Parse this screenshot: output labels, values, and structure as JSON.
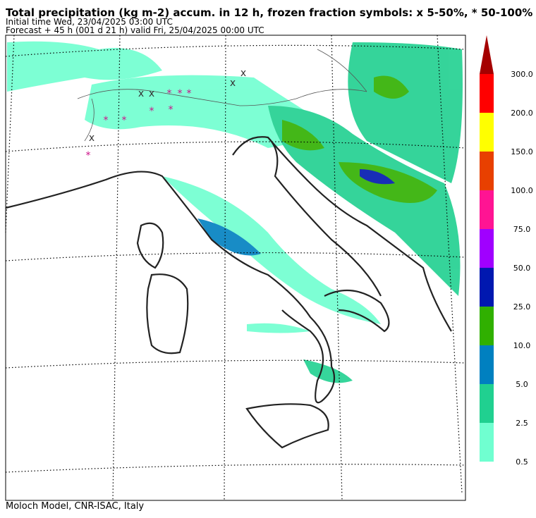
{
  "header": {
    "title": "Total precipitation (kg m-2) accum. in 12 h, frozen fraction symbols: x 5-50%, * 50-100%",
    "initial_time": "Initial time  Wed, 23/04/2025  03:00 UTC",
    "forecast": "Forecast  +  45 h  (001 d 21 h)  valid Fri, 25/04/2025 00:00 UTC"
  },
  "colorbar": {
    "colors": [
      "#70ffd0",
      "#20d090",
      "#0080c0",
      "#30b000",
      "#0018b0",
      "#a000ff",
      "#ff1493",
      "#e84000",
      "#ffff00",
      "#ff0000",
      "#a50000"
    ],
    "labels": [
      "0.5",
      "2.5",
      "5.0",
      "10.0",
      "25.0",
      "50.0",
      "75.0",
      "100.0",
      "150.0",
      "200.0",
      "300.0"
    ]
  },
  "footer": "Moloch Model, CNR-ISAC, Italy"
}
